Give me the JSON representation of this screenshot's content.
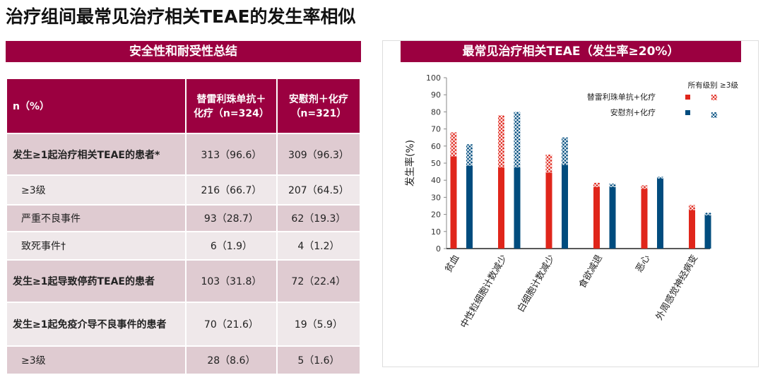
{
  "title": "治疗组间最常见治疗相关TEAE的发生率相似",
  "left_panel": {
    "title": "安全性和耐受性总结",
    "headers": [
      "n（%）",
      "替雷利珠单抗＋化疗（n=324）",
      "安慰剂＋化疗（n=321）"
    ],
    "rows": [
      {
        "label": "发生≥1起治疗相关TEAE的患者*",
        "a": "313（96.6）",
        "b": "309（96.3）"
      },
      {
        "label": "≥3级",
        "a": "216（66.7）",
        "b": "207（64.5）"
      },
      {
        "label": "严重不良事件",
        "a": "93（28.7）",
        "b": "62（19.3）"
      },
      {
        "label": "致死事件†",
        "a": "6（1.9）",
        "b": "4（1.2）"
      },
      {
        "label": "发生≥1起导致停药TEAE的患者",
        "a": "103（31.8）",
        "b": "72（22.4）"
      },
      {
        "label": "发生≥1起免疫介导不良事件的患者",
        "a": "70（21.6）",
        "b": "19（5.9）"
      },
      {
        "label": "≥3级",
        "a": "28（8.6）",
        "b": "5（1.6）"
      }
    ]
  },
  "chart_data": {
    "type": "bar",
    "title": "最常见治疗相关TEAE（发生率≥20%）",
    "ylabel": "发生率(%)",
    "ylim": [
      0,
      100
    ],
    "yticks": [
      "0",
      "10",
      "20",
      "30",
      "40",
      "50",
      "60",
      "70",
      "80",
      "90",
      "100"
    ],
    "categories": [
      "贫血",
      "中性粒细胞计数减少",
      "白细胞计数减少",
      "食欲减退",
      "恶心",
      "外周感觉神经病变"
    ],
    "legend_columns": [
      "所有级别",
      "≥3级"
    ],
    "legend_header": "所有级别 ≥3级",
    "series": [
      {
        "name": "替雷利珠单抗+化疗",
        "color": "#e0261b",
        "solid": [
          54,
          47.5,
          44.5,
          36,
          35,
          22.5
        ],
        "total": [
          68,
          78,
          55,
          38.5,
          37,
          25.5
        ]
      },
      {
        "name": "安慰剂+化疗",
        "color": "#004c7e",
        "solid": [
          48.5,
          47.5,
          49,
          36,
          41,
          19.5
        ],
        "total": [
          61,
          80,
          65,
          38,
          42,
          21
        ]
      }
    ]
  }
}
